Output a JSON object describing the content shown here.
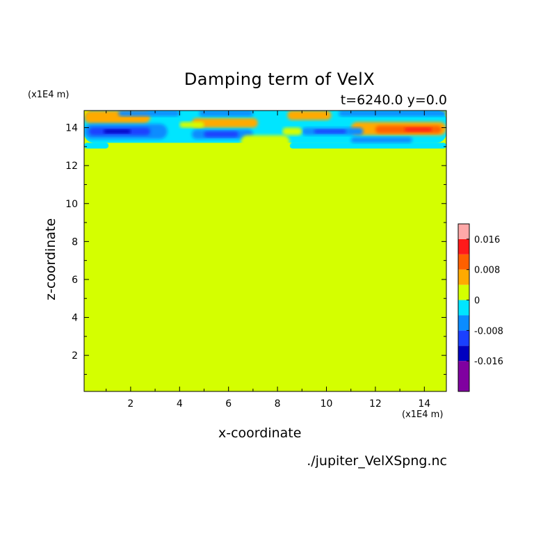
{
  "chart_data": {
    "type": "heatmap",
    "title": "Damping term of VelX",
    "subtitle": "t=6240.0 y=0.0",
    "xlabel": "x-coordinate",
    "ylabel": "z-coordinate",
    "x_unit": "(x1E4 m)",
    "z_unit": "(x1E4 m)",
    "source": "./jupiter_VelXSpng.nc",
    "xlim": [
      0.1,
      14.9
    ],
    "ylim": [
      0.1,
      14.9
    ],
    "x_ticks": [
      2,
      4,
      6,
      8,
      10,
      12,
      14
    ],
    "y_ticks": [
      2,
      4,
      6,
      8,
      10,
      12,
      14
    ],
    "grid": false,
    "background_level": 0,
    "colorbar": {
      "position": "right",
      "levels": [
        {
          "color": "#8000a0",
          "range": [
            -0.024,
            -0.016
          ]
        },
        {
          "color": "#0000c0",
          "range": [
            -0.016,
            -0.012
          ]
        },
        {
          "color": "#1a40ff",
          "range": [
            -0.012,
            -0.008
          ]
        },
        {
          "color": "#0a8cff",
          "range": [
            -0.008,
            -0.004
          ]
        },
        {
          "color": "#00e5ff",
          "range": [
            -0.004,
            0
          ]
        },
        {
          "color": "#d4ff00",
          "range": [
            0,
            0.004
          ]
        },
        {
          "color": "#ffaa00",
          "range": [
            0.004,
            0.008
          ]
        },
        {
          "color": "#ff6000",
          "range": [
            0.008,
            0.012
          ]
        },
        {
          "color": "#ff1a1a",
          "range": [
            0.012,
            0.016
          ]
        },
        {
          "color": "#ffa8a8",
          "range": [
            0.016,
            0.02
          ]
        }
      ],
      "tick_labels": [
        "0.016",
        "0.008",
        "0",
        "-0.008",
        "-0.016"
      ],
      "tick_values": [
        0.016,
        0.008,
        0,
        -0.008,
        -0.016
      ]
    },
    "regions": [
      {
        "level": "#00e5ff",
        "x": [
          0.1,
          14.9
        ],
        "z": [
          13.2,
          14.9
        ]
      },
      {
        "level": "#00e5ff",
        "x": [
          0.1,
          1.1
        ],
        "z": [
          12.9,
          13.2
        ]
      },
      {
        "level": "#00e5ff",
        "x": [
          8.5,
          14.9
        ],
        "z": [
          12.9,
          13.2
        ]
      },
      {
        "level": "#ffaa00",
        "x": [
          0.1,
          2.8
        ],
        "z": [
          14.2,
          14.9
        ]
      },
      {
        "level": "#ffaa00",
        "x": [
          4.5,
          7.2
        ],
        "z": [
          14.0,
          14.5
        ]
      },
      {
        "level": "#ffaa00",
        "x": [
          8.4,
          10.2
        ],
        "z": [
          14.4,
          14.9
        ]
      },
      {
        "level": "#ffaa00",
        "x": [
          11.0,
          14.9
        ],
        "z": [
          13.6,
          14.3
        ]
      },
      {
        "level": "#ff6000",
        "x": [
          12.0,
          14.7
        ],
        "z": [
          13.7,
          14.1
        ]
      },
      {
        "level": "#ff1a1a",
        "x": [
          13.2,
          14.3
        ],
        "z": [
          13.8,
          14.0
        ]
      },
      {
        "level": "#0a8cff",
        "x": [
          0.1,
          3.5
        ],
        "z": [
          13.4,
          14.2
        ]
      },
      {
        "level": "#1a40ff",
        "x": [
          0.3,
          2.8
        ],
        "z": [
          13.6,
          14.0
        ]
      },
      {
        "level": "#0000c0",
        "x": [
          0.9,
          2.0
        ],
        "z": [
          13.7,
          13.9
        ]
      },
      {
        "level": "#0a8cff",
        "x": [
          4.5,
          7.0
        ],
        "z": [
          13.4,
          13.9
        ]
      },
      {
        "level": "#1a40ff",
        "x": [
          5.0,
          6.4
        ],
        "z": [
          13.5,
          13.8
        ]
      },
      {
        "level": "#0a8cff",
        "x": [
          1.5,
          4.0
        ],
        "z": [
          14.6,
          14.9
        ]
      },
      {
        "level": "#0a8cff",
        "x": [
          4.8,
          7.0
        ],
        "z": [
          14.6,
          14.9
        ]
      },
      {
        "level": "#0a8cff",
        "x": [
          9.0,
          11.5
        ],
        "z": [
          13.6,
          14.0
        ]
      },
      {
        "level": "#1a40ff",
        "x": [
          9.5,
          10.8
        ],
        "z": [
          13.7,
          13.9
        ]
      },
      {
        "level": "#0a8cff",
        "x": [
          10.5,
          14.9
        ],
        "z": [
          14.6,
          14.9
        ]
      },
      {
        "level": "#0a8cff",
        "x": [
          11.0,
          13.5
        ],
        "z": [
          13.2,
          13.5
        ]
      },
      {
        "level": "#d4ff00",
        "x": [
          6.5,
          8.5
        ],
        "z": [
          12.9,
          13.6
        ]
      },
      {
        "level": "#d4ff00",
        "x": [
          4.0,
          5.0
        ],
        "z": [
          14.0,
          14.3
        ]
      },
      {
        "level": "#d4ff00",
        "x": [
          8.2,
          9.0
        ],
        "z": [
          13.6,
          14.0
        ]
      }
    ]
  }
}
